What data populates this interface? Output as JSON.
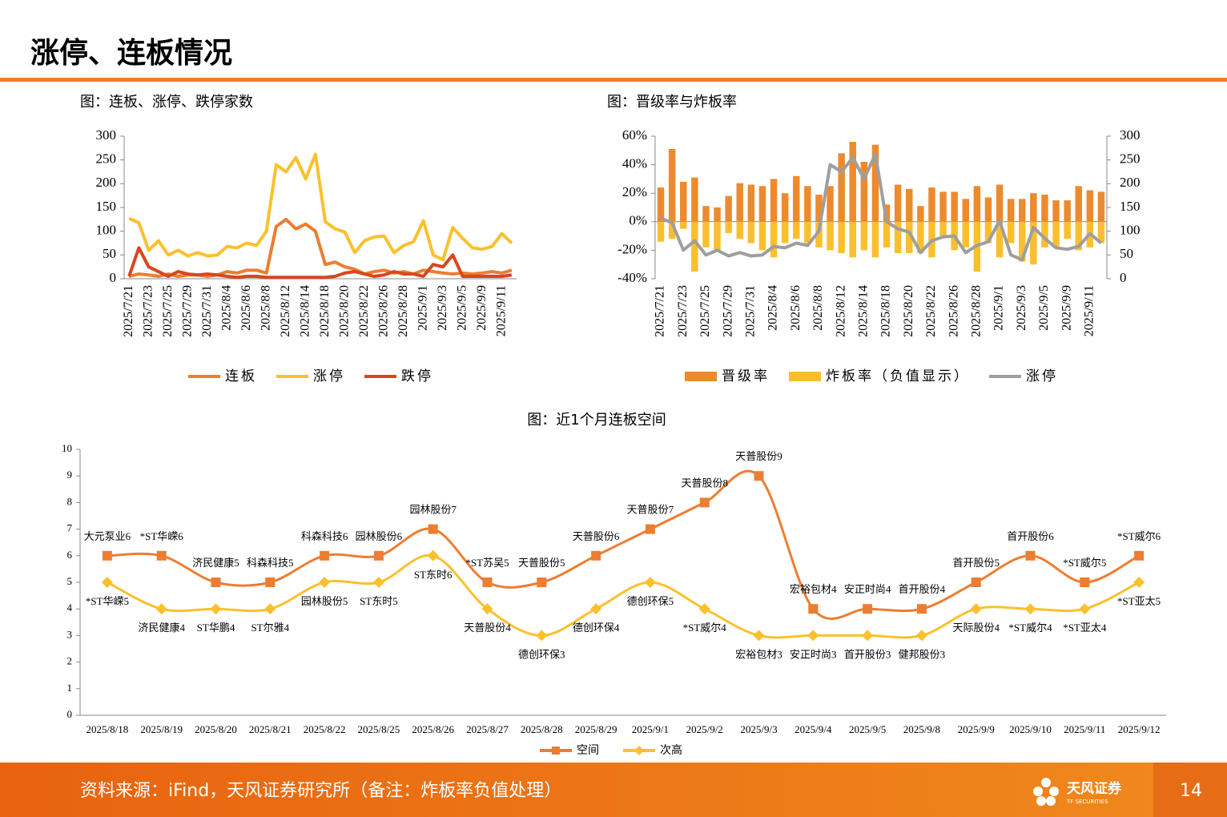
{
  "header": {
    "title": "涨停、连板情况"
  },
  "footer": {
    "source": "资料来源：iFind，天风证券研究所（备注：炸板率负值处理）",
    "logo": "天风证券",
    "logo_sub": "TF SECURITIES",
    "page": "14"
  },
  "chart_data": [
    {
      "type": "line",
      "title": "图：连板、涨停、跌停家数",
      "categories": [
        "2025/7/21",
        null,
        "2025/7/23",
        null,
        "2025/7/25",
        null,
        "2025/7/29",
        null,
        "2025/7/31",
        null,
        "2025/8/4",
        null,
        "2025/8/6",
        null,
        "2025/8/8",
        null,
        "2025/8/12",
        null,
        "2025/8/14",
        null,
        "2025/8/18",
        null,
        "2025/8/20",
        null,
        "2025/8/22",
        null,
        "2025/8/26",
        null,
        "2025/8/28",
        null,
        "2025/9/1",
        null,
        "2025/9/3",
        null,
        "2025/9/5",
        null,
        "2025/9/9",
        null,
        "2025/9/11",
        null
      ],
      "ylim": [
        0,
        300
      ],
      "yticks": [
        0,
        50,
        100,
        150,
        200,
        250,
        300
      ],
      "series": [
        {
          "name": "连板",
          "color": "#ed7d31",
          "values": [
            5,
            10,
            8,
            5,
            10,
            5,
            8,
            8,
            5,
            8,
            15,
            12,
            18,
            18,
            12,
            110,
            125,
            105,
            115,
            100,
            30,
            35,
            25,
            20,
            10,
            15,
            18,
            12,
            15,
            10,
            18,
            15,
            12,
            10,
            12,
            10,
            12,
            15,
            12,
            18
          ]
        },
        {
          "name": "涨停",
          "color": "#fbc02d",
          "values": [
            127,
            118,
            60,
            80,
            50,
            60,
            48,
            55,
            48,
            50,
            68,
            65,
            75,
            70,
            100,
            240,
            225,
            255,
            210,
            262,
            120,
            105,
            98,
            55,
            80,
            88,
            90,
            55,
            70,
            78,
            122,
            50,
            40,
            108,
            85,
            65,
            62,
            68,
            95,
            75
          ]
        },
        {
          "name": "跌停",
          "color": "#d9461e",
          "values": [
            5,
            65,
            25,
            15,
            5,
            15,
            10,
            8,
            10,
            8,
            5,
            3,
            5,
            5,
            3,
            3,
            3,
            3,
            3,
            3,
            3,
            5,
            12,
            15,
            10,
            5,
            8,
            15,
            10,
            10,
            5,
            30,
            25,
            50,
            5,
            5,
            5,
            5,
            5,
            8
          ]
        }
      ]
    },
    {
      "type": "combo",
      "title": "图：晋级率与炸板率",
      "categories": [
        "2025/7/21",
        null,
        "2025/7/23",
        null,
        "2025/7/25",
        null,
        "2025/7/29",
        null,
        "2025/7/31",
        null,
        "2025/8/4",
        null,
        "2025/8/6",
        null,
        "2025/8/8",
        null,
        "2025/8/12",
        null,
        "2025/8/14",
        null,
        "2025/8/18",
        null,
        "2025/8/20",
        null,
        "2025/8/22",
        null,
        "2025/8/26",
        null,
        "2025/8/28",
        null,
        "2025/9/1",
        null,
        "2025/9/3",
        null,
        "2025/9/5",
        null,
        "2025/9/9",
        null,
        "2025/9/11",
        null
      ],
      "ylim": [
        -40,
        60
      ],
      "yticks": [
        {
          "value": -40,
          "label": "-40%"
        },
        {
          "value": -20,
          "label": "-20%"
        },
        {
          "value": 0,
          "label": "0%"
        },
        {
          "value": 20,
          "label": "20%"
        },
        {
          "value": 40,
          "label": "40%"
        },
        {
          "value": 60,
          "label": "60%"
        }
      ],
      "y2lim": [
        0,
        300
      ],
      "y2ticks": [
        0,
        50,
        100,
        150,
        200,
        250,
        300
      ],
      "series": [
        {
          "name": "晋级率",
          "type": "bar",
          "color": "#ed8a2d",
          "values": [
            24,
            51,
            28,
            31,
            11,
            10,
            18,
            27,
            26,
            25,
            30,
            20,
            32,
            25,
            19,
            25,
            48,
            56,
            42,
            54,
            12,
            26,
            23,
            11,
            24,
            21,
            21,
            16,
            25,
            17,
            26,
            16,
            16,
            20,
            19,
            15,
            15,
            25,
            22,
            21
          ]
        },
        {
          "name": "炸板率（负值显示）",
          "type": "bar",
          "color": "#fbbf2e",
          "values": [
            -14,
            -12,
            -5,
            -35,
            -18,
            -20,
            -8,
            -12,
            -15,
            -20,
            -25,
            -15,
            -12,
            -15,
            -18,
            -20,
            -22,
            -25,
            -20,
            -25,
            -18,
            -22,
            -22,
            -22,
            -25,
            -10,
            -20,
            -18,
            -35,
            -15,
            -25,
            -15,
            -28,
            -30,
            -18,
            -18,
            -12,
            -20,
            -18,
            -15
          ]
        },
        {
          "name": "涨停",
          "type": "line",
          "axis": "y2",
          "color": "#9e9e9e",
          "values": [
            127,
            118,
            60,
            80,
            50,
            60,
            48,
            55,
            48,
            50,
            68,
            65,
            75,
            70,
            100,
            240,
            225,
            255,
            210,
            262,
            120,
            105,
            98,
            55,
            80,
            88,
            90,
            55,
            70,
            78,
            122,
            50,
            40,
            108,
            85,
            65,
            62,
            68,
            95,
            75
          ]
        }
      ]
    },
    {
      "type": "line",
      "title": "图：近1个月连板空间",
      "smooth": true,
      "categories": [
        "2025/8/18",
        "2025/8/19",
        "2025/8/20",
        "2025/8/21",
        "2025/8/22",
        "2025/8/25",
        "2025/8/26",
        "2025/8/27",
        "2025/8/28",
        "2025/8/29",
        "2025/9/1",
        "2025/9/2",
        "2025/9/3",
        "2025/9/4",
        "2025/9/5",
        "2025/9/8",
        "2025/9/9",
        "2025/9/10",
        "2025/9/11",
        "2025/9/12"
      ],
      "ylim": [
        0,
        10
      ],
      "yticks": [
        0,
        1,
        2,
        3,
        4,
        5,
        6,
        7,
        8,
        9,
        10
      ],
      "series": [
        {
          "name": "空间",
          "color": "#ed7d31",
          "marker": "square",
          "values": [
            6,
            6,
            5,
            5,
            6,
            6,
            7,
            5,
            5,
            6,
            7,
            8,
            9,
            4,
            4,
            4,
            5,
            6,
            5,
            6
          ],
          "value_labels": [
            "大元泵业6",
            "*ST华嵘6",
            "济民健康5",
            "科森科技5",
            "科森科技6",
            "园林股份6",
            "园林股份7",
            "*ST苏吴5",
            "天普股份5",
            "天普股份6",
            "天普股份7",
            "天普股份8",
            "天普股份9",
            "宏裕包材4",
            "安正时尚4",
            "首开股份4",
            "首开股份5",
            "首开股份6",
            "*ST威尔5",
            "*ST威尔6"
          ]
        },
        {
          "name": "次高",
          "color": "#fbc02d",
          "marker": "diamond",
          "values": [
            5,
            4,
            4,
            4,
            5,
            5,
            6,
            4,
            3,
            4,
            5,
            4,
            3,
            3,
            3,
            3,
            4,
            4,
            4,
            5
          ],
          "value_labels": [
            "*ST华嵘5",
            "济民健康4",
            "ST华鹏4",
            "ST尔雅4",
            "园林股份5",
            "ST东时5",
            "ST东时6",
            "天普股份4",
            "德创环保3",
            "德创环保4",
            "德创环保5",
            "*ST威尔4",
            "宏裕包材3",
            "安正时尚3",
            "首开股份3",
            "健邦股份3",
            "天际股份4",
            "*ST威尔4",
            "*ST亚太4",
            "*ST亚太5"
          ]
        }
      ]
    }
  ]
}
